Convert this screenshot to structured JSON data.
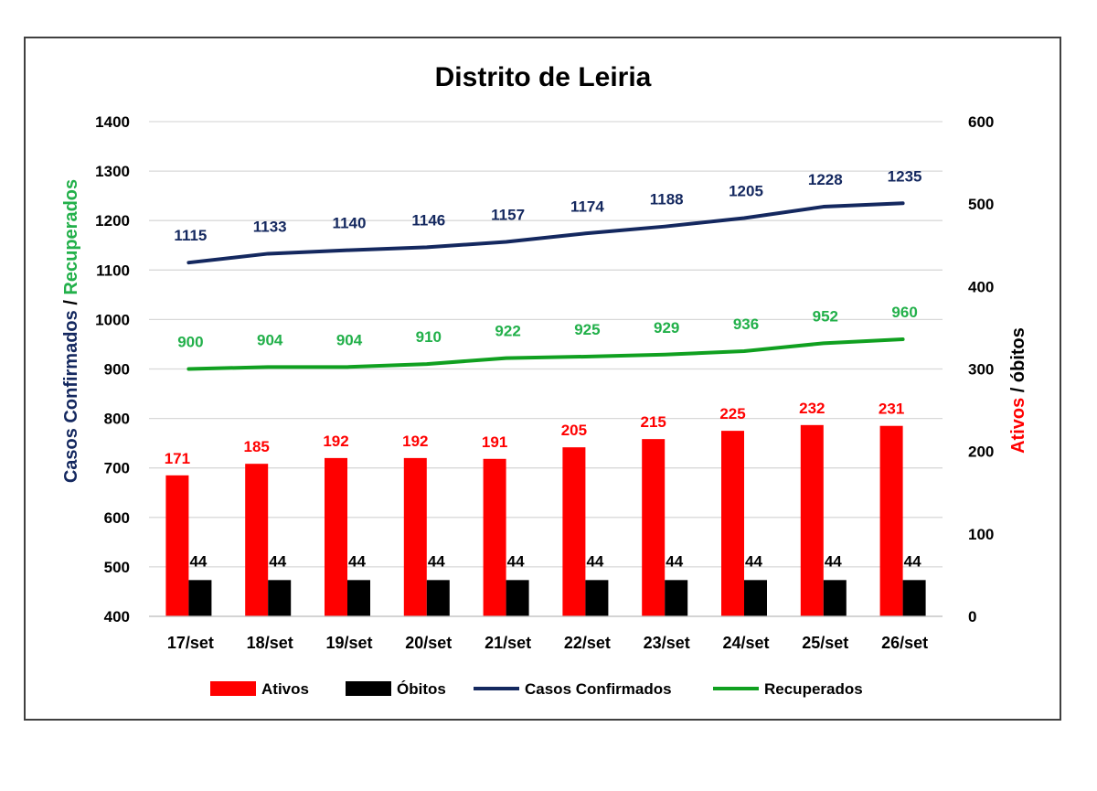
{
  "chart_data": {
    "type": "bar",
    "title": "Distrito de Leiria",
    "categories": [
      "17/set",
      "18/set",
      "19/set",
      "20/set",
      "21/set",
      "22/set",
      "23/set",
      "24/set",
      "25/set",
      "26/set"
    ],
    "ylabel_left_part1": "Casos Confirmados",
    "ylabel_left_sep": " / ",
    "ylabel_left_part2": "Recuperados",
    "ylabel_right_part1": "Ativos",
    "ylabel_right_sep": " / ",
    "ylabel_right_part2": "óbitos",
    "ylim_left": [
      400,
      1400
    ],
    "yticks_left": [
      400,
      500,
      600,
      700,
      800,
      900,
      1000,
      1100,
      1200,
      1300,
      1400
    ],
    "ylim_right": [
      0,
      600
    ],
    "yticks_right": [
      0,
      100,
      200,
      300,
      400,
      500,
      600
    ],
    "grid": true,
    "legend_position": "bottom",
    "series": [
      {
        "name": "Ativos",
        "kind": "bar",
        "axis": "right",
        "color": "#ff0000",
        "values": [
          171,
          185,
          192,
          192,
          191,
          205,
          215,
          225,
          232,
          231
        ]
      },
      {
        "name": "Óbitos",
        "kind": "bar",
        "axis": "right",
        "color": "#000000",
        "values": [
          44,
          44,
          44,
          44,
          44,
          44,
          44,
          44,
          44,
          44
        ]
      },
      {
        "name": "Casos Confirmados",
        "kind": "line",
        "axis": "left",
        "color": "#14285f",
        "values": [
          1115,
          1133,
          1140,
          1146,
          1157,
          1174,
          1188,
          1205,
          1228,
          1235
        ]
      },
      {
        "name": "Recuperados",
        "kind": "line",
        "axis": "left",
        "color": "#10a020",
        "values": [
          900,
          904,
          904,
          910,
          922,
          925,
          929,
          936,
          952,
          960
        ]
      }
    ],
    "label_colors": {
      "Ativos": "#ff0000",
      "Óbitos": "#000000",
      "Casos Confirmados": "#14285f",
      "Recuperados": "#22b04a"
    }
  }
}
